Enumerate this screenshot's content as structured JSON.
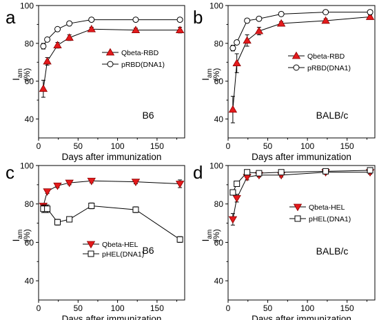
{
  "colors": {
    "red": "#e41a1c",
    "axis": "#000000",
    "open": "#ffffff"
  },
  "chart_data": [
    {
      "panel_label": "a",
      "type": "line",
      "xlabel": "Days after immunization",
      "ylabel_main": "I",
      "ylabel_sub": "am",
      "ylabel_unit": "(%)",
      "xlim": [
        0,
        185
      ],
      "ylim": [
        30,
        100
      ],
      "xticks": [
        0,
        50,
        100,
        150
      ],
      "yticks": [
        40,
        60,
        80,
        100
      ],
      "annotation": "B6",
      "legend_position": "center-right",
      "series": [
        {
          "name": "Qbeta-RBD",
          "marker": "triangle-up",
          "filled": true,
          "x": [
            6,
            11,
            24,
            39,
            67,
            123,
            179
          ],
          "y": [
            56,
            70.5,
            79,
            83,
            87.5,
            87,
            87
          ],
          "err": [
            4.5,
            2,
            1.5,
            1.5,
            1,
            1,
            1.5
          ]
        },
        {
          "name": "pRBD(DNA1)",
          "marker": "circle",
          "filled": false,
          "x": [
            6,
            11,
            24,
            39,
            67,
            123,
            179
          ],
          "y": [
            78.5,
            82,
            87.5,
            90.5,
            92.5,
            92.5,
            92.5
          ],
          "err": [
            1.5,
            1,
            1,
            1,
            1,
            1,
            1
          ]
        }
      ]
    },
    {
      "panel_label": "b",
      "type": "line",
      "xlabel": "Days after immunization",
      "ylabel_main": "I",
      "ylabel_sub": "am",
      "ylabel_unit": "(%)",
      "xlim": [
        0,
        185
      ],
      "ylim": [
        30,
        100
      ],
      "xticks": [
        0,
        50,
        100,
        150
      ],
      "yticks": [
        40,
        60,
        80,
        100
      ],
      "annotation": "BALB/c",
      "legend_position": "center-right",
      "series": [
        {
          "name": "Qbeta-RBD",
          "marker": "triangle-up",
          "filled": true,
          "x": [
            6,
            11,
            24,
            39,
            67,
            123,
            179
          ],
          "y": [
            45,
            69.5,
            81.5,
            86.5,
            90.5,
            92,
            94
          ],
          "err": [
            7,
            5,
            3,
            2,
            1,
            1,
            1
          ]
        },
        {
          "name": "pRBD(DNA1)",
          "marker": "circle",
          "filled": false,
          "x": [
            6,
            11,
            24,
            39,
            67,
            123,
            179
          ],
          "y": [
            77.5,
            80.5,
            92,
            93,
            95.5,
            96.5,
            96.5
          ],
          "err": [
            1.5,
            1,
            1,
            1,
            1,
            1,
            1
          ]
        }
      ]
    },
    {
      "panel_label": "c",
      "type": "line",
      "xlabel": "Days after immunization",
      "ylabel_main": "I",
      "ylabel_sub": "am",
      "ylabel_unit": "(%)",
      "xlim": [
        0,
        185
      ],
      "ylim": [
        30,
        100
      ],
      "xticks": [
        0,
        50,
        100,
        150
      ],
      "yticks": [
        40,
        60,
        80,
        100
      ],
      "annotation": "B6",
      "legend_position": "center-left",
      "series": [
        {
          "name": "Qbeta-HEL",
          "marker": "triangle-down",
          "filled": true,
          "x": [
            6,
            11,
            24,
            39,
            67,
            123,
            179
          ],
          "y": [
            79,
            86.5,
            89.5,
            91,
            92,
            91.5,
            90.5
          ],
          "err": [
            1,
            1,
            1,
            1,
            1,
            1,
            2
          ]
        },
        {
          "name": "pHEL(DNA1)",
          "marker": "square",
          "filled": false,
          "x": [
            6,
            11,
            24,
            39,
            67,
            123,
            179
          ],
          "y": [
            77.5,
            77.5,
            70.5,
            72,
            79,
            77,
            61.5
          ],
          "err": [
            2,
            2,
            1.5,
            1,
            1.5,
            1.5,
            1.5
          ]
        }
      ]
    },
    {
      "panel_label": "d",
      "type": "line",
      "xlabel": "Days after immunization",
      "ylabel_main": "I",
      "ylabel_sub": "am",
      "ylabel_unit": "(%)",
      "xlim": [
        0,
        185
      ],
      "ylim": [
        30,
        100
      ],
      "xticks": [
        0,
        50,
        100,
        150
      ],
      "yticks": [
        40,
        60,
        80,
        100
      ],
      "annotation": "BALB/c",
      "legend_position": "center-right",
      "series": [
        {
          "name": "Qbeta-HEL",
          "marker": "triangle-down",
          "filled": true,
          "x": [
            6,
            11,
            24,
            39,
            67,
            123,
            179
          ],
          "y": [
            72,
            83,
            94,
            95,
            95,
            96.5,
            96.5
          ],
          "err": [
            3,
            2,
            1.5,
            1,
            1,
            1,
            1
          ]
        },
        {
          "name": "pHEL(DNA1)",
          "marker": "square",
          "filled": false,
          "x": [
            6,
            11,
            24,
            39,
            67,
            123,
            179
          ],
          "y": [
            86,
            90.5,
            96.5,
            96,
            96.5,
            97,
            97.5
          ],
          "err": [
            1,
            1,
            1,
            1,
            1,
            1,
            1
          ]
        }
      ]
    }
  ]
}
